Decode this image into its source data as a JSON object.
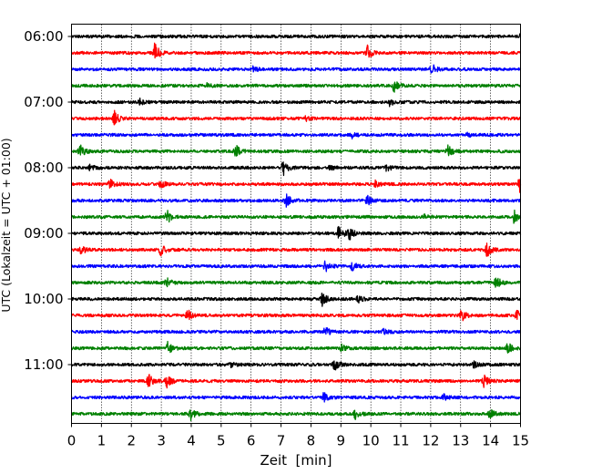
{
  "chart_data": {
    "type": "line",
    "subtype": "helicorder",
    "xlabel": "Zeit  [min]",
    "ylabel": "UTC (Lokalzeit = UTC + 01:00)",
    "xlim": [
      0,
      15
    ],
    "x_ticks": [
      0,
      1,
      2,
      3,
      4,
      5,
      6,
      7,
      8,
      9,
      10,
      11,
      12,
      13,
      14,
      15
    ],
    "vertical_grid": true,
    "line_minutes": 15,
    "y_tick_labels": [
      "06:00",
      "07:00",
      "08:00",
      "09:00",
      "10:00",
      "11:00"
    ],
    "colors": [
      "#000000",
      "#ff0000",
      "#0000ff",
      "#008000"
    ],
    "traces": [
      {
        "start": "06:00",
        "events": [
          {
            "t": 15.0,
            "amp": 5
          }
        ]
      },
      {
        "start": "06:15",
        "events": [
          {
            "t": 2.75,
            "amp": 11
          },
          {
            "t": 9.85,
            "amp": 9
          }
        ]
      },
      {
        "start": "06:30",
        "events": [
          {
            "t": 6.05,
            "amp": 3
          },
          {
            "t": 12.0,
            "amp": 6
          }
        ]
      },
      {
        "start": "06:45",
        "events": [
          {
            "t": 4.5,
            "amp": 2
          },
          {
            "t": 10.75,
            "amp": 7
          }
        ]
      },
      {
        "start": "07:00",
        "events": [
          {
            "t": 2.25,
            "amp": 3
          },
          {
            "t": 10.6,
            "amp": 4
          }
        ]
      },
      {
        "start": "07:15",
        "events": [
          {
            "t": 1.4,
            "amp": 8
          },
          {
            "t": 7.8,
            "amp": 2
          }
        ]
      },
      {
        "start": "07:30",
        "events": [
          {
            "t": 9.35,
            "amp": 3
          },
          {
            "t": 13.2,
            "amp": 2
          }
        ]
      },
      {
        "start": "07:45",
        "events": [
          {
            "t": 0.25,
            "amp": 7
          },
          {
            "t": 5.45,
            "amp": 7
          },
          {
            "t": 12.55,
            "amp": 7
          }
        ]
      },
      {
        "start": "08:00",
        "events": [
          {
            "t": 0.6,
            "amp": 3
          },
          {
            "t": 7.05,
            "amp": 9
          },
          {
            "t": 8.6,
            "amp": 3
          },
          {
            "t": 10.5,
            "amp": 4
          }
        ]
      },
      {
        "start": "08:15",
        "events": [
          {
            "t": 1.25,
            "amp": 5
          },
          {
            "t": 2.95,
            "amp": 4
          },
          {
            "t": 10.1,
            "amp": 4
          },
          {
            "t": 14.95,
            "amp": 11
          }
        ]
      },
      {
        "start": "08:30",
        "events": [
          {
            "t": 7.15,
            "amp": 7
          },
          {
            "t": 9.85,
            "amp": 5
          }
        ]
      },
      {
        "start": "08:45",
        "events": [
          {
            "t": 3.15,
            "amp": 8
          },
          {
            "t": 11.75,
            "amp": 3
          },
          {
            "t": 14.75,
            "amp": 7
          }
        ]
      },
      {
        "start": "09:00",
        "events": [
          {
            "t": 8.9,
            "amp": 9
          },
          {
            "t": 9.25,
            "amp": 7
          }
        ]
      },
      {
        "start": "09:15",
        "events": [
          {
            "t": 0.3,
            "amp": 5
          },
          {
            "t": 2.95,
            "amp": 6
          },
          {
            "t": 13.85,
            "amp": 8
          }
        ]
      },
      {
        "start": "09:30",
        "events": [
          {
            "t": 8.45,
            "amp": 6
          },
          {
            "t": 9.35,
            "amp": 5
          }
        ]
      },
      {
        "start": "09:45",
        "events": [
          {
            "t": 3.15,
            "amp": 5
          },
          {
            "t": 14.15,
            "amp": 7
          }
        ]
      },
      {
        "start": "10:00",
        "events": [
          {
            "t": 8.35,
            "amp": 7
          },
          {
            "t": 9.55,
            "amp": 4
          }
        ]
      },
      {
        "start": "10:15",
        "events": [
          {
            "t": 3.85,
            "amp": 6
          },
          {
            "t": 13.0,
            "amp": 7
          },
          {
            "t": 14.85,
            "amp": 5
          }
        ]
      },
      {
        "start": "10:30",
        "events": [
          {
            "t": 8.45,
            "amp": 5
          },
          {
            "t": 10.4,
            "amp": 3
          }
        ]
      },
      {
        "start": "10:45",
        "events": [
          {
            "t": 3.2,
            "amp": 8
          },
          {
            "t": 9.0,
            "amp": 4
          },
          {
            "t": 14.55,
            "amp": 6
          }
        ]
      },
      {
        "start": "11:00",
        "events": [
          {
            "t": 5.3,
            "amp": 3
          },
          {
            "t": 8.75,
            "amp": 7
          },
          {
            "t": 13.4,
            "amp": 3
          }
        ]
      },
      {
        "start": "11:15",
        "events": [
          {
            "t": 2.55,
            "amp": 7
          },
          {
            "t": 3.15,
            "amp": 7
          },
          {
            "t": 13.75,
            "amp": 6
          }
        ]
      },
      {
        "start": "11:30",
        "events": [
          {
            "t": 8.4,
            "amp": 6
          },
          {
            "t": 12.4,
            "amp": 3
          }
        ]
      },
      {
        "start": "11:45",
        "events": [
          {
            "t": 3.95,
            "amp": 7
          },
          {
            "t": 9.45,
            "amp": 5
          },
          {
            "t": 13.95,
            "amp": 5
          }
        ]
      }
    ]
  }
}
